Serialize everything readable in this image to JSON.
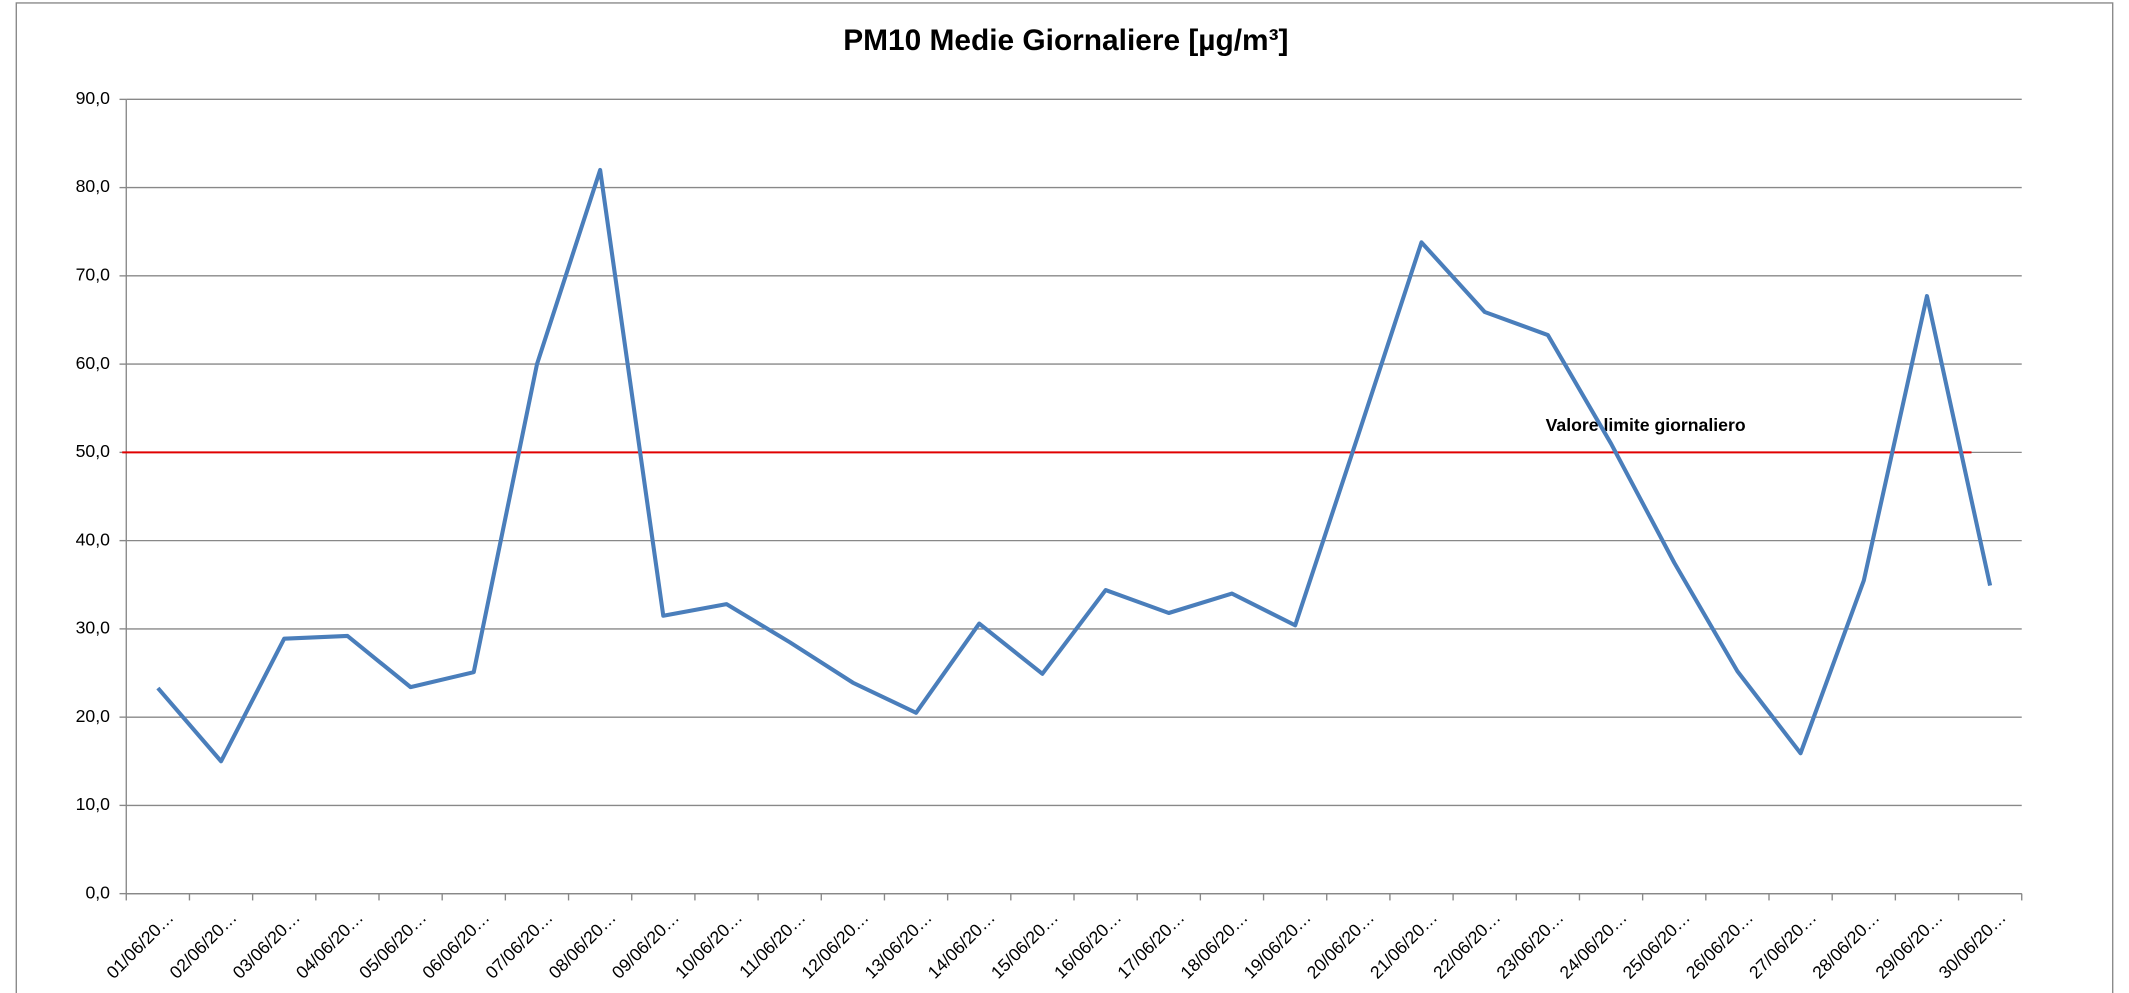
{
  "chart_data": {
    "type": "line",
    "title": "PM10 Medie  Giornaliere [µg/m³]",
    "categories": [
      "01/06/20…",
      "02/06/20…",
      "03/06/20…",
      "04/06/20…",
      "05/06/20…",
      "06/06/20…",
      "07/06/20…",
      "08/06/20…",
      "09/06/20…",
      "10/06/20…",
      "11/06/20…",
      "12/06/20…",
      "13/06/20…",
      "14/06/20…",
      "15/06/20…",
      "16/06/20…",
      "17/06/20…",
      "18/06/20…",
      "19/06/20…",
      "20/06/20…",
      "21/06/20…",
      "22/06/20…",
      "23/06/20…",
      "24/06/20…",
      "25/06/20…",
      "26/06/20…",
      "27/06/20…",
      "28/06/20…",
      "29/06/20…",
      "30/06/20…"
    ],
    "values": [
      23.3,
      15.0,
      28.9,
      29.2,
      23.4,
      25.1,
      60.0,
      82.0,
      31.5,
      32.8,
      28.5,
      23.9,
      20.5,
      30.6,
      24.9,
      34.4,
      31.8,
      34.0,
      30.4,
      52.0,
      73.8,
      65.9,
      63.3,
      51.0,
      37.5,
      25.2,
      15.9,
      35.5,
      67.7,
      34.9
    ],
    "color": "#4a7ebb",
    "ylim": [
      0,
      90
    ],
    "yticks": [
      {
        "value": 0,
        "label": "0,0"
      },
      {
        "value": 10,
        "label": "10,0"
      },
      {
        "value": 20,
        "label": "20,0"
      },
      {
        "value": 30,
        "label": "30,0"
      },
      {
        "value": 40,
        "label": "40,0"
      },
      {
        "value": 50,
        "label": "50,0"
      },
      {
        "value": 60,
        "label": "60,0"
      },
      {
        "value": 70,
        "label": "70,0"
      },
      {
        "value": 80,
        "label": "80,0"
      },
      {
        "value": 90,
        "label": "90,0"
      }
    ],
    "grid": true,
    "limit_line": {
      "value": 50,
      "label": "Valore limite giornaliero",
      "color": "#e00000"
    }
  }
}
